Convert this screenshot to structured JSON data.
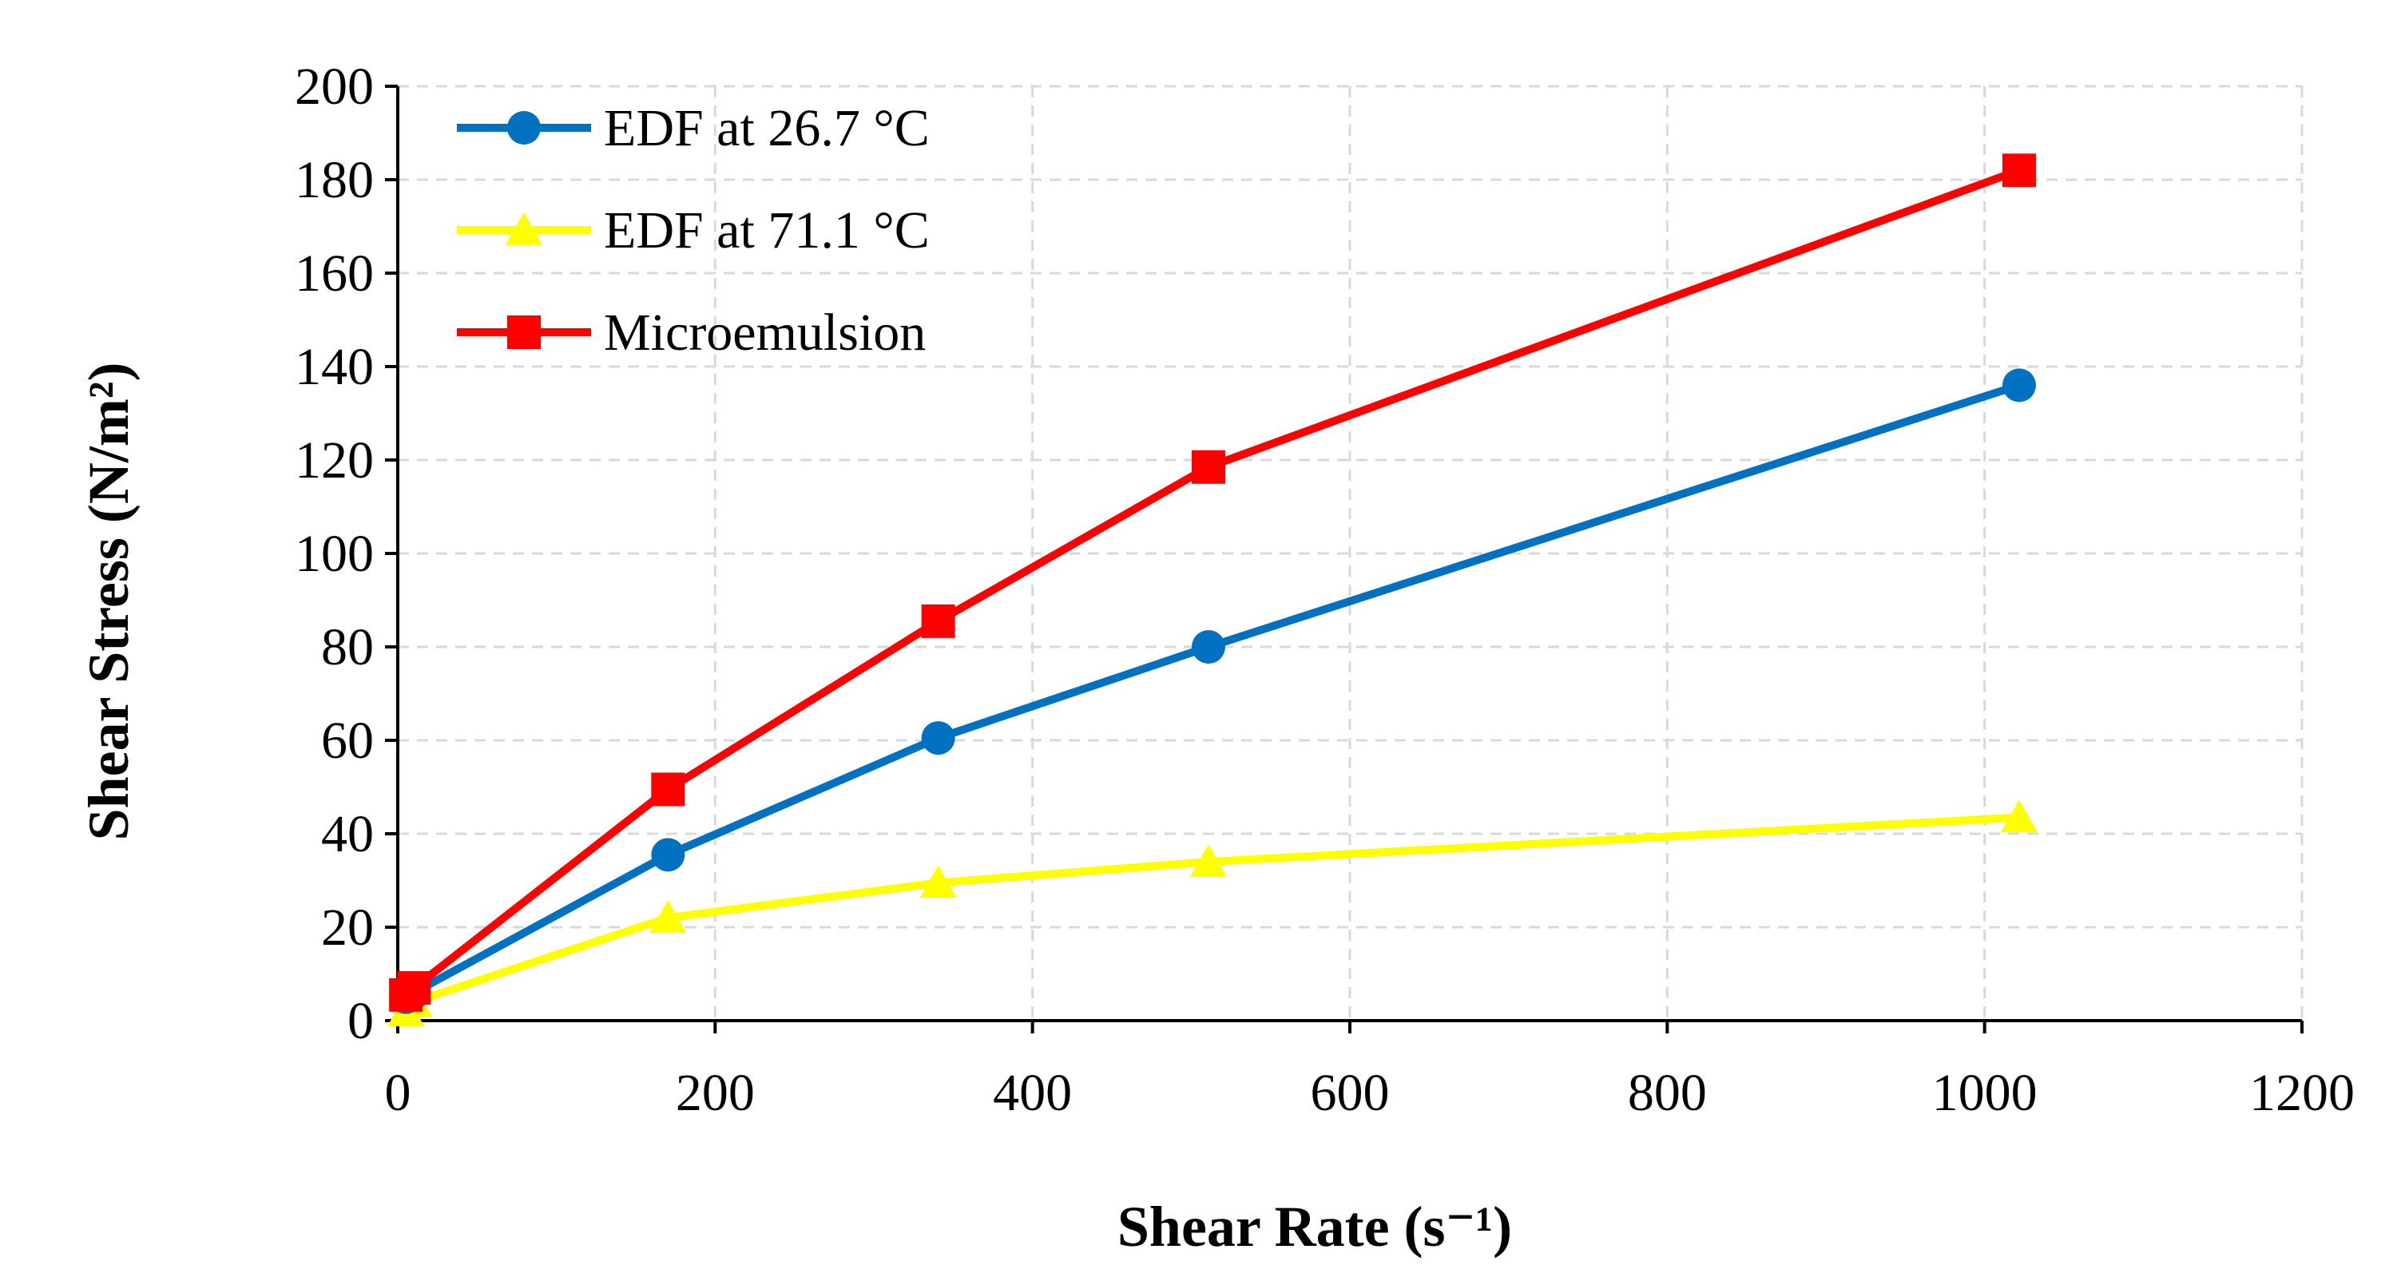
{
  "chart_data": {
    "type": "line",
    "title": "",
    "xlabel": "Shear Rate (s⁻¹)",
    "ylabel": "Shear Stress (N/m²)",
    "xlim": [
      0,
      1200
    ],
    "ylim": [
      0,
      200
    ],
    "xticks": [
      0,
      200,
      400,
      600,
      800,
      1000,
      1200
    ],
    "yticks": [
      0,
      20,
      40,
      60,
      80,
      100,
      120,
      140,
      160,
      180,
      200
    ],
    "grid": true,
    "legend_position": "top-left",
    "series": [
      {
        "name": "EDF at 26.7 °C",
        "color": "#0070C0",
        "marker": "circle",
        "x": [
          5.1,
          10.2,
          170.3,
          340.6,
          510.9,
          1021.8
        ],
        "y": [
          5,
          6,
          35.5,
          60.5,
          80,
          136
        ]
      },
      {
        "name": "EDF at 71.1 °C",
        "color": "#FFFF00",
        "marker": "triangle",
        "x": [
          5.1,
          10.2,
          170.3,
          340.6,
          510.9,
          1021.8
        ],
        "y": [
          2,
          4,
          22,
          29.5,
          34,
          43.5
        ]
      },
      {
        "name": "Microemulsion",
        "color": "#FF0000",
        "marker": "square",
        "x": [
          5.1,
          10.2,
          170.3,
          340.6,
          510.9,
          1021.8
        ],
        "y": [
          5.5,
          7,
          49.5,
          85.5,
          118.5,
          182
        ]
      }
    ]
  }
}
